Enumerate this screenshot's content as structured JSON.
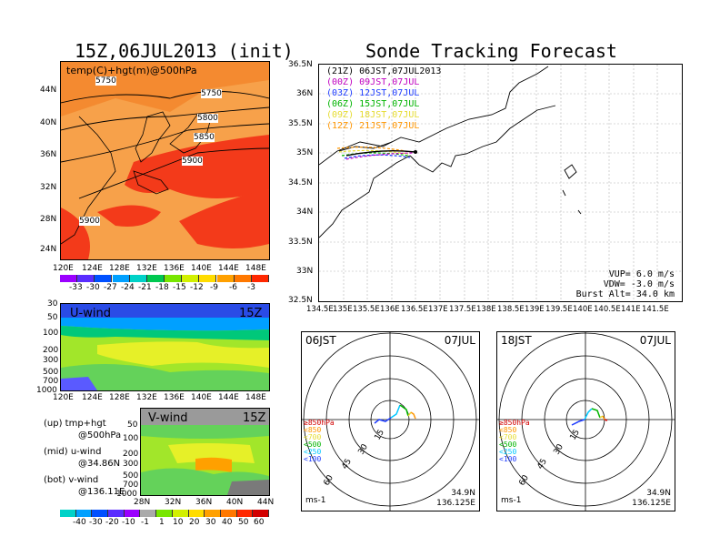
{
  "left_top": {
    "title": "15Z,06JUL2013 (init)",
    "subtitle": "temp(C)+hgt(m)@500hPa",
    "contours": [
      "5750",
      "5750",
      "5800",
      "5850",
      "5900",
      "5900"
    ],
    "lat_labels": [
      "44N",
      "40N",
      "36N",
      "32N",
      "28N",
      "24N"
    ],
    "lon_labels": [
      "120E",
      "124E",
      "128E",
      "132E",
      "136E",
      "140E",
      "144E",
      "148E"
    ],
    "colorbar_labels": [
      "-33",
      "-30",
      "-27",
      "-24",
      "-21",
      "-18",
      "-15",
      "-12",
      "-9",
      "-6",
      "-3"
    ],
    "colorbar_colors": [
      "#9b00ff",
      "#5a2dff",
      "#0050ff",
      "#00a0ff",
      "#00d2c8",
      "#00c850",
      "#78e600",
      "#d2f000",
      "#ffdc00",
      "#ffa000",
      "#ff7800",
      "#ff2800"
    ]
  },
  "u_wind": {
    "title": "U-wind",
    "time": "15Z",
    "p_labels": [
      "30",
      "50",
      "100",
      "200",
      "300",
      "500",
      "700",
      "1000"
    ],
    "lon_labels": [
      "120E",
      "124E",
      "128E",
      "132E",
      "136E",
      "140E",
      "144E",
      "148E"
    ]
  },
  "v_wind": {
    "title": "V-wind",
    "time": "15Z",
    "p_labels": [
      "50",
      "100",
      "200",
      "300",
      "500",
      "700",
      "1000"
    ],
    "lat_labels": [
      "28N",
      "32N",
      "36N",
      "40N",
      "44N"
    ]
  },
  "legend_notes": [
    {
      "line1": "(up) tmp+hgt",
      "line2": "@500hPa"
    },
    {
      "line1": "(mid) u-wind",
      "line2": "@34.86N"
    },
    {
      "line1": "(bot) v-wind",
      "line2": "@136.11E"
    }
  ],
  "wind_colorbar": {
    "labels": [
      "-40",
      "-30",
      "-20",
      "-10",
      "-1",
      "1",
      "10",
      "20",
      "30",
      "40",
      "50",
      "60"
    ],
    "colors": [
      "#00d2c8",
      "#00a0ff",
      "#0050ff",
      "#5a2dff",
      "#9b00ff",
      "#aaaaaa",
      "#78e600",
      "#d2f000",
      "#ffdc00",
      "#ffa000",
      "#ff7800",
      "#ff2800",
      "#d20000"
    ]
  },
  "forecast": {
    "title": "Sonde Tracking Forecast",
    "lat_labels": [
      "36.5N",
      "36N",
      "35.5N",
      "35N",
      "34.5N",
      "34N",
      "33.5N",
      "33N",
      "32.5N"
    ],
    "lon_labels": [
      "134.5E",
      "135E",
      "135.5E",
      "136E",
      "136.5E",
      "137E",
      "137.5E",
      "138E",
      "138.5E",
      "139E",
      "139.5E",
      "140E",
      "140.5E",
      "141E",
      "141.5E"
    ],
    "legend": [
      {
        "run": "(21Z)",
        "time": "06JST,07JUL2013",
        "color": "#000000"
      },
      {
        "run": "(00Z)",
        "time": "09JST,07JUL",
        "color": "#c000c0"
      },
      {
        "run": "(03Z)",
        "time": "12JST,07JUL",
        "color": "#1e3cff"
      },
      {
        "run": "(06Z)",
        "time": "15JST,07JUL",
        "color": "#00b400"
      },
      {
        "run": "(09Z)",
        "time": "18JST,07JUL",
        "color": "#e6dc32"
      },
      {
        "run": "(12Z)",
        "time": "21JST,07JUL",
        "color": "#ff9600"
      }
    ],
    "params": [
      "VUP= 6.0 m/s",
      "VDW= -3.0 m/s",
      "Burst Alt= 34.0 km"
    ]
  },
  "hodographs": [
    {
      "time": "06JST",
      "date": "07JUL",
      "rings": [
        "15",
        "30",
        "45",
        "60"
      ],
      "unit": "ms-1",
      "lat": "34.9N",
      "lon": "136.125E"
    },
    {
      "time": "18JST",
      "date": "07JUL",
      "rings": [
        "15",
        "30",
        "45",
        "60"
      ],
      "unit": "ms-1",
      "lat": "34.9N",
      "lon": "136.125E"
    }
  ],
  "hodo_legend": [
    {
      "text": "≥850hPa",
      "color": "#d20000"
    },
    {
      "text": "<850",
      "color": "#ff9600"
    },
    {
      "text": "<700",
      "color": "#e6dc32"
    },
    {
      "text": "<500",
      "color": "#00b400"
    },
    {
      "text": "<250",
      "color": "#00c8ff"
    },
    {
      "text": "<100",
      "color": "#1e3cff"
    }
  ]
}
